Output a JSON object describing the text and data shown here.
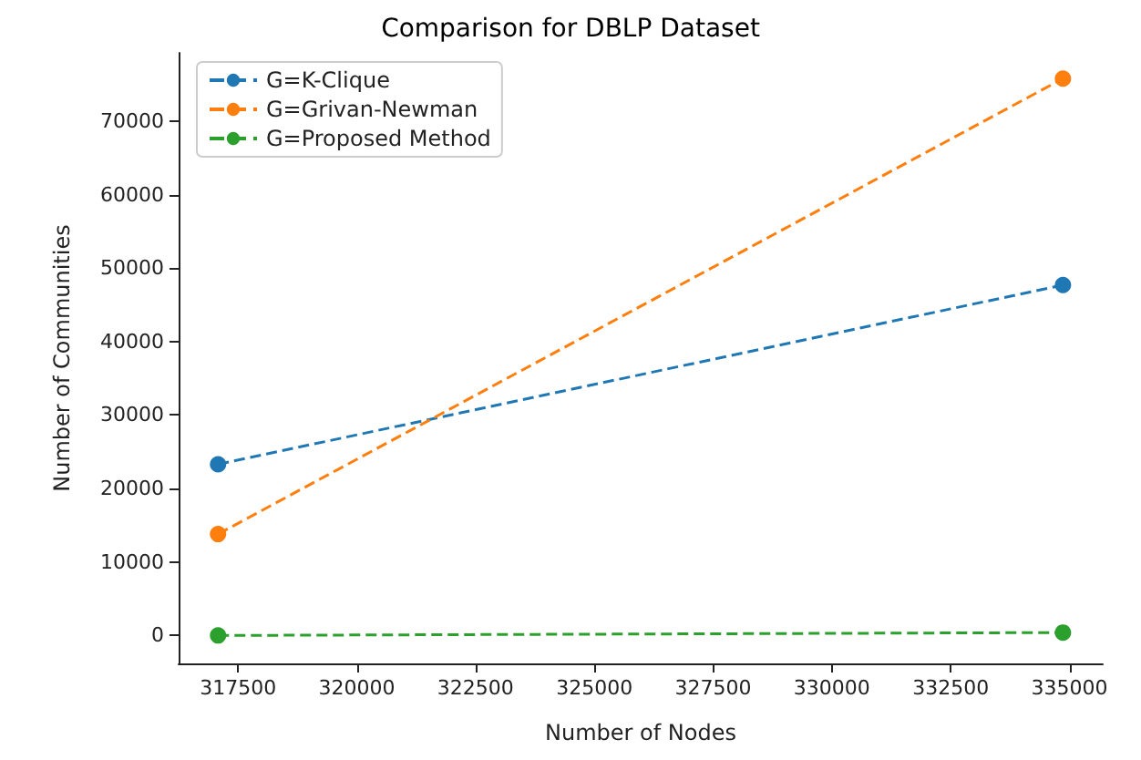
{
  "chart_data": {
    "type": "line",
    "title": "Comparison for DBLP Dataset",
    "xlabel": "Number of Nodes",
    "ylabel": "Number of Communities",
    "x": [
      317080,
      334863
    ],
    "series": [
      {
        "name": "G=K-Clique",
        "color": "#1f77b4",
        "values": [
          23300,
          47700
        ]
      },
      {
        "name": "G=Grivan-Newman",
        "color": "#ff7f0e",
        "values": [
          13800,
          75800
        ]
      },
      {
        "name": "G=Proposed Method",
        "color": "#2ca02c",
        "values": [
          0,
          400
        ]
      }
    ],
    "xlim": [
      316250,
      335700
    ],
    "xticks": [
      317500,
      320000,
      322500,
      325000,
      327500,
      330000,
      332500,
      335000
    ],
    "ylim": [
      -3800,
      79300
    ],
    "yticks": [
      0,
      10000,
      20000,
      30000,
      40000,
      50000,
      60000,
      70000
    ],
    "grid": false,
    "legend": "top left",
    "marker": "circle",
    "line_style": "dashed"
  }
}
